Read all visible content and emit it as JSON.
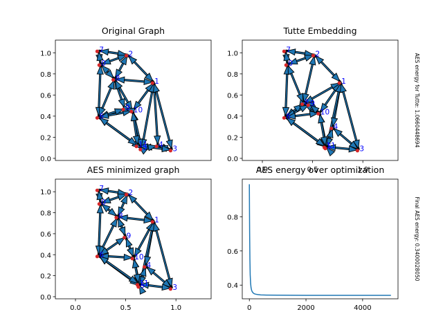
{
  "chart_data": [
    {
      "type": "network",
      "title": "Original Graph",
      "xlim": [
        -0.2,
        1.35
      ],
      "ylim": [
        -0.02,
        1.12
      ],
      "xticks": [],
      "yticks": [
        "0.0",
        "0.2",
        "0.4",
        "0.6",
        "0.8",
        "1.0"
      ],
      "nodes": [
        {
          "label": "0",
          "x": 0.25,
          "y": 0.89
        },
        {
          "label": "1",
          "x": 0.78,
          "y": 0.72
        },
        {
          "label": "2",
          "x": 0.52,
          "y": 0.98
        },
        {
          "label": "3",
          "x": 0.96,
          "y": 0.08
        },
        {
          "label": "4",
          "x": 0.82,
          "y": 0.12
        },
        {
          "label": "5",
          "x": 0.66,
          "y": 0.09
        },
        {
          "label": "6",
          "x": 0.23,
          "y": 0.39
        },
        {
          "label": "7",
          "x": 0.23,
          "y": 1.02
        },
        {
          "label": "8",
          "x": 0.39,
          "y": 0.75
        },
        {
          "label": "9",
          "x": 0.49,
          "y": 0.47
        },
        {
          "label": "10",
          "x": 0.57,
          "y": 0.45
        },
        {
          "label": "11",
          "x": 0.62,
          "y": 0.12
        }
      ],
      "edges": [
        [
          7,
          2
        ],
        [
          7,
          0
        ],
        [
          0,
          2
        ],
        [
          0,
          6
        ],
        [
          2,
          8
        ],
        [
          2,
          1
        ],
        [
          8,
          1
        ],
        [
          8,
          9
        ],
        [
          8,
          6
        ],
        [
          8,
          10
        ],
        [
          1,
          10
        ],
        [
          1,
          4
        ],
        [
          1,
          5
        ],
        [
          1,
          3
        ],
        [
          4,
          3
        ],
        [
          4,
          5
        ],
        [
          5,
          11
        ],
        [
          11,
          3
        ],
        [
          6,
          9
        ],
        [
          6,
          10
        ],
        [
          6,
          5
        ],
        [
          9,
          10
        ],
        [
          10,
          5
        ],
        [
          10,
          11
        ],
        [
          0,
          8
        ],
        [
          6,
          11
        ]
      ]
    },
    {
      "type": "network",
      "title": "Tutte Embedding",
      "side_label": "AES energy for Tutte: 1.0660448694",
      "xlim": [
        -0.2,
        1.35
      ],
      "ylim": [
        -0.02,
        1.12
      ],
      "xticks": [
        "0.0",
        "0.5",
        "1.0"
      ],
      "yticks": [
        "0.0",
        "0.2",
        "0.4",
        "0.6",
        "0.8",
        "1.0"
      ],
      "nodes": [
        {
          "label": "0",
          "x": 0.25,
          "y": 0.89
        },
        {
          "label": "1",
          "x": 0.78,
          "y": 0.72
        },
        {
          "label": "2",
          "x": 0.52,
          "y": 0.98
        },
        {
          "label": "3",
          "x": 0.96,
          "y": 0.08
        },
        {
          "label": "4",
          "x": 0.7,
          "y": 0.29
        },
        {
          "label": "5",
          "x": 0.64,
          "y": 0.1
        },
        {
          "label": "6",
          "x": 0.23,
          "y": 0.39
        },
        {
          "label": "7",
          "x": 0.23,
          "y": 1.02
        },
        {
          "label": "8",
          "x": 0.41,
          "y": 0.52
        },
        {
          "label": "9",
          "x": 0.47,
          "y": 0.51
        },
        {
          "label": "10",
          "x": 0.57,
          "y": 0.43
        },
        {
          "label": "11",
          "x": 0.63,
          "y": 0.11
        }
      ],
      "edges": [
        [
          7,
          2
        ],
        [
          7,
          0
        ],
        [
          0,
          2
        ],
        [
          0,
          6
        ],
        [
          2,
          8
        ],
        [
          2,
          1
        ],
        [
          8,
          1
        ],
        [
          8,
          9
        ],
        [
          8,
          6
        ],
        [
          8,
          10
        ],
        [
          1,
          10
        ],
        [
          1,
          4
        ],
        [
          1,
          5
        ],
        [
          1,
          3
        ],
        [
          4,
          3
        ],
        [
          4,
          5
        ],
        [
          5,
          11
        ],
        [
          11,
          3
        ],
        [
          6,
          9
        ],
        [
          6,
          10
        ],
        [
          6,
          5
        ],
        [
          9,
          10
        ],
        [
          10,
          5
        ],
        [
          10,
          11
        ],
        [
          0,
          8
        ],
        [
          6,
          11
        ]
      ]
    },
    {
      "type": "network",
      "title": "AES minimized graph",
      "xlim": [
        -0.2,
        1.35
      ],
      "ylim": [
        -0.02,
        1.12
      ],
      "xticks": [
        "0.0",
        "0.5",
        "1.0"
      ],
      "yticks": [
        "0.0",
        "0.2",
        "0.4",
        "0.6",
        "0.8",
        "1.0"
      ],
      "nodes": [
        {
          "label": "0",
          "x": 0.25,
          "y": 0.89
        },
        {
          "label": "1",
          "x": 0.78,
          "y": 0.72
        },
        {
          "label": "2",
          "x": 0.52,
          "y": 0.98
        },
        {
          "label": "3",
          "x": 0.96,
          "y": 0.08
        },
        {
          "label": "4",
          "x": 0.7,
          "y": 0.29
        },
        {
          "label": "5",
          "x": 0.64,
          "y": 0.1
        },
        {
          "label": "6",
          "x": 0.23,
          "y": 0.39
        },
        {
          "label": "7",
          "x": 0.23,
          "y": 1.02
        },
        {
          "label": "8",
          "x": 0.42,
          "y": 0.76
        },
        {
          "label": "9",
          "x": 0.5,
          "y": 0.57
        },
        {
          "label": "10",
          "x": 0.58,
          "y": 0.37
        },
        {
          "label": "11",
          "x": 0.63,
          "y": 0.12
        }
      ],
      "edges": [
        [
          7,
          2
        ],
        [
          7,
          0
        ],
        [
          0,
          2
        ],
        [
          0,
          6
        ],
        [
          2,
          8
        ],
        [
          2,
          1
        ],
        [
          8,
          1
        ],
        [
          8,
          9
        ],
        [
          8,
          6
        ],
        [
          8,
          10
        ],
        [
          1,
          10
        ],
        [
          1,
          4
        ],
        [
          1,
          5
        ],
        [
          1,
          3
        ],
        [
          4,
          3
        ],
        [
          4,
          5
        ],
        [
          5,
          11
        ],
        [
          11,
          3
        ],
        [
          6,
          9
        ],
        [
          6,
          10
        ],
        [
          6,
          5
        ],
        [
          9,
          10
        ],
        [
          10,
          5
        ],
        [
          10,
          11
        ],
        [
          0,
          8
        ],
        [
          6,
          11
        ]
      ]
    },
    {
      "type": "line",
      "title": "AES energy over optimization",
      "side_label": "Final AES energy: 0.3400028050",
      "xlim": [
        -250,
        5250
      ],
      "ylim": [
        0.32,
        1.02
      ],
      "xticks": [
        "0",
        "2000",
        "4000"
      ],
      "yticks": [
        "0.4",
        "0.6",
        "0.8"
      ],
      "series": [
        {
          "color": "#1f77b4",
          "x": [
            0,
            5,
            10,
            20,
            30,
            45,
            60,
            80,
            100,
            130,
            170,
            220,
            300,
            400,
            600,
            1000,
            2000,
            3000,
            4000,
            5000
          ],
          "y": [
            0.99,
            0.84,
            0.71,
            0.55,
            0.46,
            0.41,
            0.385,
            0.37,
            0.362,
            0.355,
            0.35,
            0.347,
            0.345,
            0.343,
            0.342,
            0.341,
            0.3402,
            0.3401,
            0.34,
            0.34
          ]
        }
      ]
    }
  ],
  "colors": {
    "edge": "#1f77b4",
    "arrow_fill": "#1f77b4",
    "node": "#d62728",
    "node_label": "#0000ff",
    "axes": "#000000"
  }
}
